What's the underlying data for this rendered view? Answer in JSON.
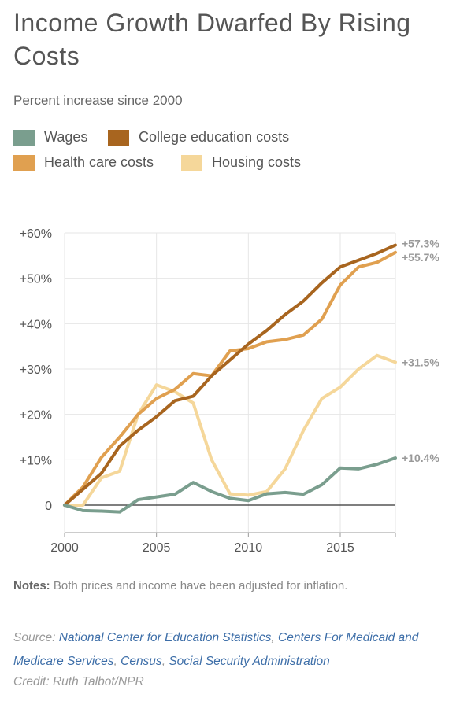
{
  "header": {
    "title": "Income Growth Dwarfed By Rising Costs",
    "subtitle": "Percent increase since 2000"
  },
  "legend": [
    {
      "label": "Wages",
      "color": "#7a9e8e"
    },
    {
      "label": "College education costs",
      "color": "#a8651f"
    },
    {
      "label": "Health care costs",
      "color": "#e0a050"
    },
    {
      "label": "Housing costs",
      "color": "#f5d79a"
    }
  ],
  "chart_data": {
    "type": "line",
    "x": [
      2000,
      2001,
      2002,
      2003,
      2004,
      2005,
      2006,
      2007,
      2008,
      2009,
      2010,
      2011,
      2012,
      2013,
      2014,
      2015,
      2016,
      2017,
      2018
    ],
    "series": [
      {
        "name": "Housing costs",
        "color": "#f5d79a",
        "end_label": "+31.5%",
        "values": [
          0,
          0,
          6,
          7.5,
          20,
          26.5,
          25,
          22.5,
          10,
          2.5,
          2.2,
          3,
          8,
          16.5,
          23.5,
          26,
          30,
          33,
          31.5
        ]
      },
      {
        "name": "Health care costs",
        "color": "#e0a050",
        "end_label": "+55.7%",
        "values": [
          0,
          4,
          10.5,
          15,
          20,
          23.5,
          25.5,
          29,
          28.5,
          34,
          34.5,
          36,
          36.5,
          37.5,
          41,
          48.5,
          52.5,
          53.5,
          55.7
        ]
      },
      {
        "name": "College education costs",
        "color": "#a8651f",
        "end_label": "+57.3%",
        "values": [
          0,
          3.5,
          7,
          13,
          16.5,
          19.5,
          23,
          24,
          28.5,
          32,
          35.5,
          38.5,
          42,
          45,
          49,
          52.5,
          54,
          55.5,
          57.3
        ]
      },
      {
        "name": "Wages",
        "color": "#7a9e8e",
        "end_label": "+10.4%",
        "values": [
          0,
          -1.2,
          -1.3,
          -1.5,
          1.2,
          1.8,
          2.4,
          5,
          3,
          1.5,
          1,
          2.5,
          2.8,
          2.4,
          4.5,
          8.2,
          8,
          9,
          10.4
        ]
      }
    ],
    "y_ticks": [
      {
        "value": 0,
        "label": "0"
      },
      {
        "value": 10,
        "label": "+10%"
      },
      {
        "value": 20,
        "label": "+20%"
      },
      {
        "value": 30,
        "label": "+30%"
      },
      {
        "value": 40,
        "label": "+40%"
      },
      {
        "value": 50,
        "label": "+50%"
      },
      {
        "value": 60,
        "label": "+60%"
      }
    ],
    "x_ticks": [
      {
        "value": 2000,
        "label": "2000"
      },
      {
        "value": 2005,
        "label": "2005"
      },
      {
        "value": 2010,
        "label": "2010"
      },
      {
        "value": 2015,
        "label": "2015"
      }
    ],
    "xlim": [
      2000,
      2018
    ],
    "ylim": [
      -6,
      60
    ],
    "grid": true
  },
  "footer": {
    "notes_label": "Notes:",
    "notes_text": "Both prices and income have been adjusted for inflation.",
    "source_label": "Source:",
    "source_links": [
      "National Center for Education Statistics",
      "Centers For Medicaid and Medicare Services",
      "Census",
      "Social Security Administration"
    ],
    "credit": "Credit: Ruth Talbot/NPR"
  }
}
